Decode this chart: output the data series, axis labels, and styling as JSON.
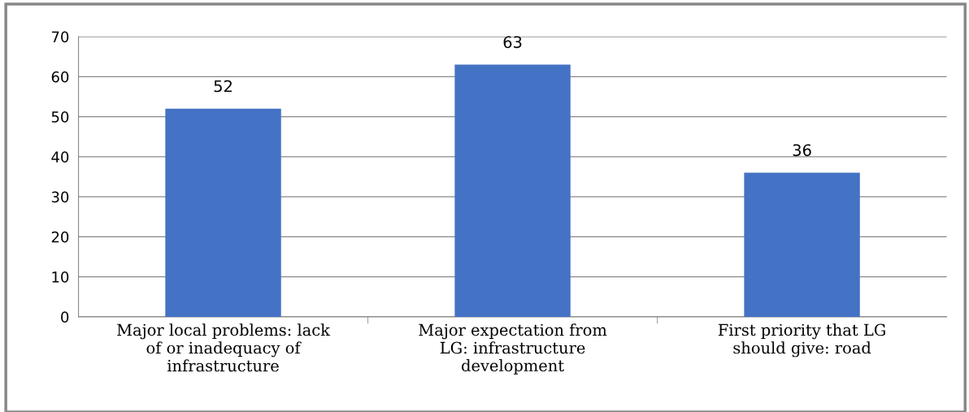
{
  "chart_data": {
    "type": "bar",
    "categories": [
      "Major local problems: lack\nof or inadequacy of\ninfrastructure",
      "Major expectation from\nLG: infrastructure\ndevelopment",
      "First priority that LG\nshould give: road"
    ],
    "values": [
      52,
      63,
      36
    ],
    "color": "#4472c4",
    "ylim": [
      0,
      70
    ],
    "yticks": [
      0,
      10,
      20,
      30,
      40,
      50,
      60,
      70
    ],
    "grid": "y",
    "data_labels": true
  }
}
